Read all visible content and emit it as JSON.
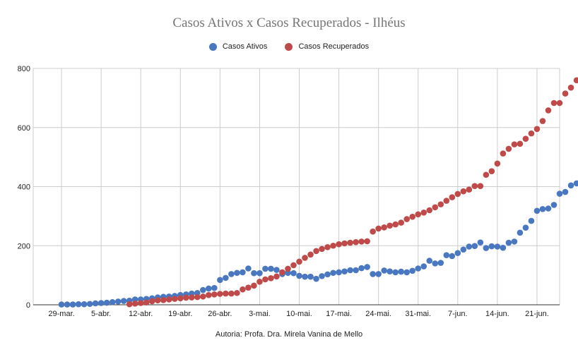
{
  "chart_data": {
    "type": "scatter",
    "title": "Casos Ativos x Casos Recuperados - Ilhéus",
    "xlabel": "",
    "ylabel": "",
    "ylim": [
      0,
      800
    ],
    "yticks": [
      "0",
      "200",
      "400",
      "600",
      "800"
    ],
    "xticks": [
      {
        "label": "29-mar.",
        "day": 29
      },
      {
        "label": "5-abr.",
        "day": 36
      },
      {
        "label": "12-abr.",
        "day": 43
      },
      {
        "label": "19-abr.",
        "day": 50
      },
      {
        "label": "26-abr.",
        "day": 57
      },
      {
        "label": "3-mai.",
        "day": 64
      },
      {
        "label": "10-mai.",
        "day": 71
      },
      {
        "label": "17-mai.",
        "day": 78
      },
      {
        "label": "24-mai.",
        "day": 85
      },
      {
        "label": "31-mai.",
        "day": 92
      },
      {
        "label": "7-jun.",
        "day": 99
      },
      {
        "label": "14-jun.",
        "day": 106
      },
      {
        "label": "21-jun.",
        "day": 113
      }
    ],
    "grid": true,
    "legend_position": "top",
    "series": [
      {
        "name": "Casos Ativos",
        "color": "#4a78c0",
        "start_day": 29,
        "values": [
          1,
          1,
          1,
          2,
          2,
          3,
          5,
          6,
          7,
          9,
          11,
          13,
          14,
          18,
          18,
          20,
          22,
          25,
          27,
          28,
          30,
          33,
          35,
          38,
          40,
          50,
          55,
          57,
          84,
          91,
          104,
          108,
          110,
          123,
          107,
          107,
          122,
          122,
          118,
          104,
          108,
          107,
          98,
          95,
          95,
          88,
          97,
          103,
          108,
          110,
          113,
          117,
          117,
          124,
          128,
          104,
          104,
          116,
          113,
          110,
          112,
          110,
          115,
          123,
          130,
          149,
          140,
          142,
          168,
          165,
          175,
          187,
          197,
          199,
          211,
          192,
          198,
          197,
          193,
          210,
          214,
          244,
          261,
          284,
          318,
          324,
          326,
          338,
          376,
          382,
          404,
          411
        ]
      },
      {
        "name": "Casos Recuperados",
        "color": "#bf4a4a",
        "start_day": 41,
        "values": [
          2,
          4,
          6,
          8,
          12,
          15,
          16,
          18,
          20,
          22,
          24,
          25,
          26,
          28,
          33,
          35,
          37,
          38,
          38,
          40,
          52,
          58,
          65,
          78,
          86,
          90,
          96,
          110,
          122,
          134,
          146,
          159,
          170,
          182,
          189,
          195,
          200,
          205,
          208,
          210,
          212,
          214,
          215,
          248,
          258,
          262,
          268,
          272,
          278,
          290,
          298,
          306,
          312,
          320,
          330,
          340,
          352,
          364,
          375,
          384,
          390,
          402,
          402,
          440,
          452,
          478,
          512,
          528,
          543,
          545,
          562,
          580,
          595,
          622,
          658,
          683,
          683,
          715,
          735,
          760
        ]
      }
    ],
    "footer": "Autoria: Profa. Dra. Mirela Vanina de Mello"
  }
}
